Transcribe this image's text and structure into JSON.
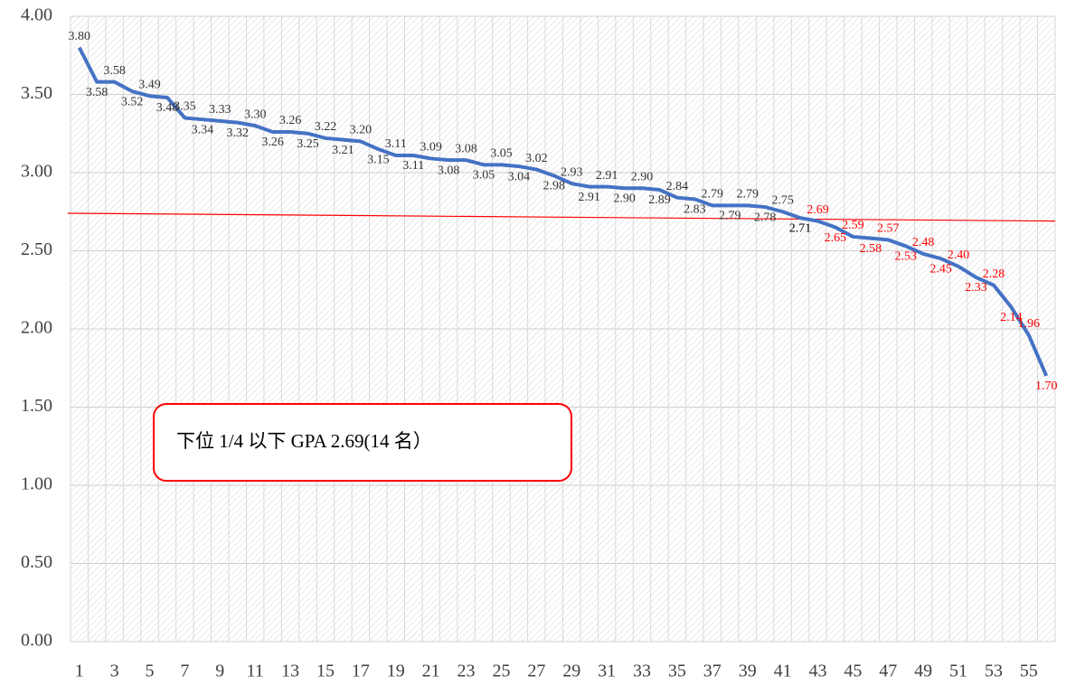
{
  "chart_data": {
    "type": "line",
    "categories": [
      1,
      null,
      3,
      null,
      5,
      null,
      7,
      null,
      9,
      null,
      11,
      null,
      13,
      null,
      15,
      null,
      17,
      null,
      19,
      null,
      21,
      null,
      23,
      null,
      25,
      null,
      27,
      null,
      29,
      null,
      31,
      null,
      33,
      null,
      35,
      null,
      37,
      null,
      39,
      null,
      41,
      null,
      43,
      null,
      45,
      null,
      47,
      null,
      49,
      null,
      51,
      null,
      53,
      null,
      55,
      null
    ],
    "series": [
      {
        "color": "#4472c4",
        "values": [
          3.8,
          3.58,
          3.58,
          3.52,
          3.49,
          3.48,
          3.35,
          3.34,
          3.33,
          3.32,
          3.3,
          3.26,
          3.26,
          3.25,
          3.22,
          3.21,
          3.2,
          3.15,
          3.11,
          3.11,
          3.09,
          3.08,
          3.08,
          3.05,
          3.05,
          3.04,
          3.02,
          2.98,
          2.93,
          2.91,
          2.91,
          2.9,
          2.9,
          2.89,
          2.84,
          2.83,
          2.79,
          2.79,
          2.79,
          2.78,
          2.75,
          2.71,
          2.69,
          2.65,
          2.59,
          2.58,
          2.57,
          2.53,
          2.48,
          2.45,
          2.4,
          2.33,
          2.28,
          2.14,
          1.96,
          1.7
        ],
        "value_labels": [
          "3.80",
          "3.58",
          "3.58",
          "3.52",
          "3.49",
          "3.48",
          "3.35",
          "3.34",
          "3.33",
          "3.32",
          "3.30",
          "3.26",
          "3.26",
          "3.25",
          "3.22",
          "3.21",
          "3.20",
          "3.15",
          "3.11",
          "3.11",
          "3.09",
          "3.08",
          "3.08",
          "3.05",
          "3.05",
          "3.04",
          "3.02",
          "2.98",
          "2.93",
          "2.91",
          "2.91",
          "2.90",
          "2.90",
          "2.89",
          "2.84",
          "2.83",
          "2.79",
          "2.79",
          "2.79",
          "2.78",
          "2.75",
          "2.71",
          "2.69",
          "2.65",
          "2.59",
          "2.58",
          "2.57",
          "2.53",
          "2.48",
          "2.45",
          "2.40",
          "2.33",
          "2.28",
          "2.14",
          "1.96",
          "1.70"
        ],
        "label_colors": [
          "#333",
          "#333",
          "#333",
          "#333",
          "#333",
          "#333",
          "#333",
          "#333",
          "#333",
          "#333",
          "#333",
          "#333",
          "#333",
          "#333",
          "#333",
          "#333",
          "#333",
          "#333",
          "#333",
          "#333",
          "#333",
          "#333",
          "#333",
          "#333",
          "#333",
          "#333",
          "#333",
          "#333",
          "#333",
          "#333",
          "#333",
          "#333",
          "#333",
          "#333",
          "#333",
          "#333",
          "#333",
          "#333",
          "#333",
          "#333",
          "#333",
          "#000",
          "#ff0000",
          "#ff0000",
          "#ff0000",
          "#ff0000",
          "#ff0000",
          "#ff0000",
          "#ff0000",
          "#ff0000",
          "#ff0000",
          "#ff0000",
          "#ff0000",
          "#ff0000",
          "#ff0000",
          "#ff0000"
        ]
      }
    ],
    "ylim": [
      0,
      4
    ],
    "yticks": [
      {
        "value": 0,
        "label": "0.00"
      },
      {
        "value": 0.5,
        "label": "0.50"
      },
      {
        "value": 1,
        "label": "1.00"
      },
      {
        "value": 1.5,
        "label": "1.50"
      },
      {
        "value": 2,
        "label": "2.00"
      },
      {
        "value": 2.5,
        "label": "2.50"
      },
      {
        "value": 3,
        "label": "3.00"
      },
      {
        "value": 3.5,
        "label": "3.50"
      },
      {
        "value": 4,
        "label": "4.00"
      }
    ],
    "grid": true,
    "reference_line": {
      "values": [
        2.74,
        2.69
      ],
      "color": "#ff0000"
    },
    "annotation": "下位 1/4 以下  GPA 2.69(14 名）"
  }
}
